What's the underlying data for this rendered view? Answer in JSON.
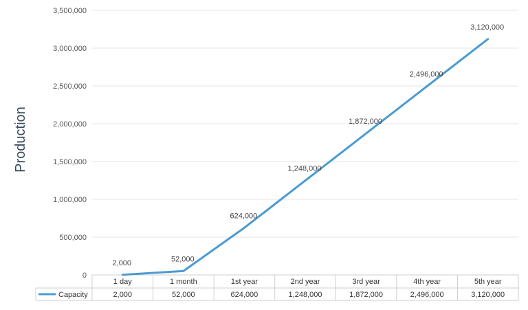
{
  "chart_data": {
    "type": "line",
    "ylabel": "Production",
    "xlabel": "",
    "title": "",
    "categories": [
      "1 day",
      "1 month",
      "1st year",
      "2nd year",
      "3rd year",
      "4th year",
      "5th year"
    ],
    "series": [
      {
        "name": "Capacity",
        "values": [
          2000,
          52000,
          624000,
          1248000,
          1872000,
          2496000,
          3120000
        ],
        "labels": [
          "2,000",
          "52,000",
          "624,000",
          "1,248,000",
          "1,872,000",
          "2,496,000",
          "3,120,000"
        ],
        "color": "#4a9bd0"
      }
    ],
    "ylim": [
      0,
      3500000
    ],
    "yticks": [
      0,
      500000,
      1000000,
      1500000,
      2000000,
      2500000,
      3000000,
      3500000
    ],
    "ytick_labels": [
      "0",
      "500,000",
      "1,000,000",
      "1,500,000",
      "2,000,000",
      "2,500,000",
      "3,000,000",
      "3,500,000"
    ],
    "grid": true,
    "legend": "data-table",
    "data_table": true
  }
}
